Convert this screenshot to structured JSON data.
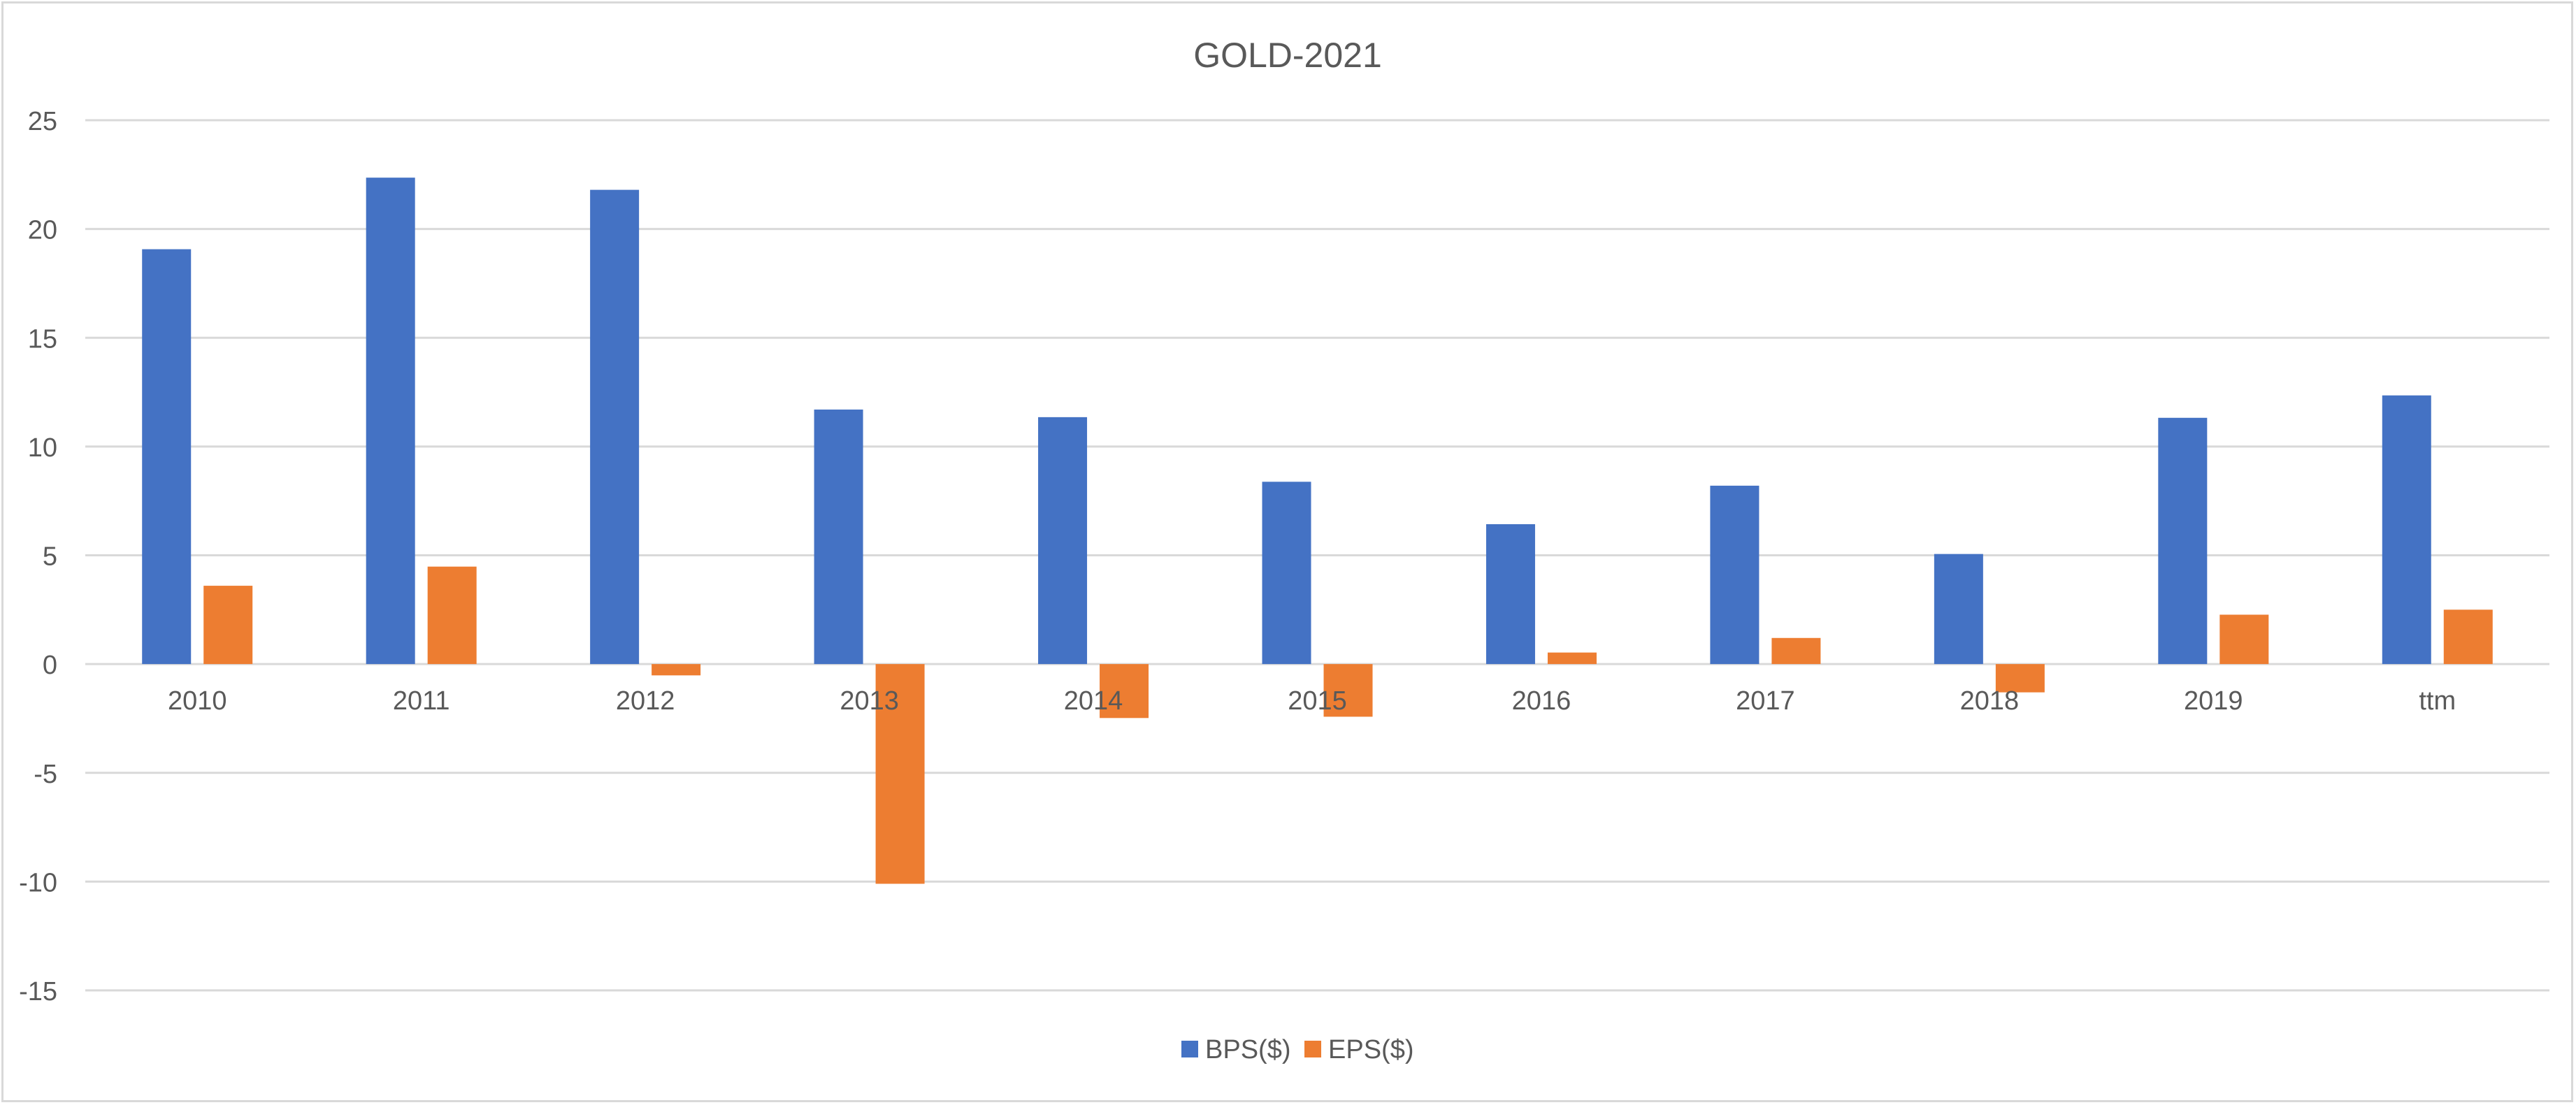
{
  "chart_data": {
    "type": "bar",
    "title": "GOLD-2021",
    "xlabel": "",
    "ylabel": "",
    "categories": [
      "2010",
      "2011",
      "2012",
      "2013",
      "2014",
      "2015",
      "2016",
      "2017",
      "2018",
      "2019",
      "ttm"
    ],
    "series": [
      {
        "name": "BPS($)",
        "color": "#4472C4",
        "values": [
          19.07,
          22.36,
          21.8,
          11.7,
          11.35,
          8.38,
          6.43,
          8.2,
          5.06,
          11.32,
          12.35
        ]
      },
      {
        "name": "EPS($)",
        "color": "#ED7D31",
        "values": [
          3.6,
          4.48,
          -0.52,
          -10.1,
          -2.48,
          -2.42,
          0.53,
          1.2,
          -1.3,
          2.27,
          2.5
        ]
      }
    ],
    "ylim": [
      -15,
      25
    ],
    "yticks": [
      25,
      20,
      15,
      10,
      5,
      0,
      -5,
      -10,
      -15
    ],
    "grid": true,
    "legend_position": "bottom"
  }
}
